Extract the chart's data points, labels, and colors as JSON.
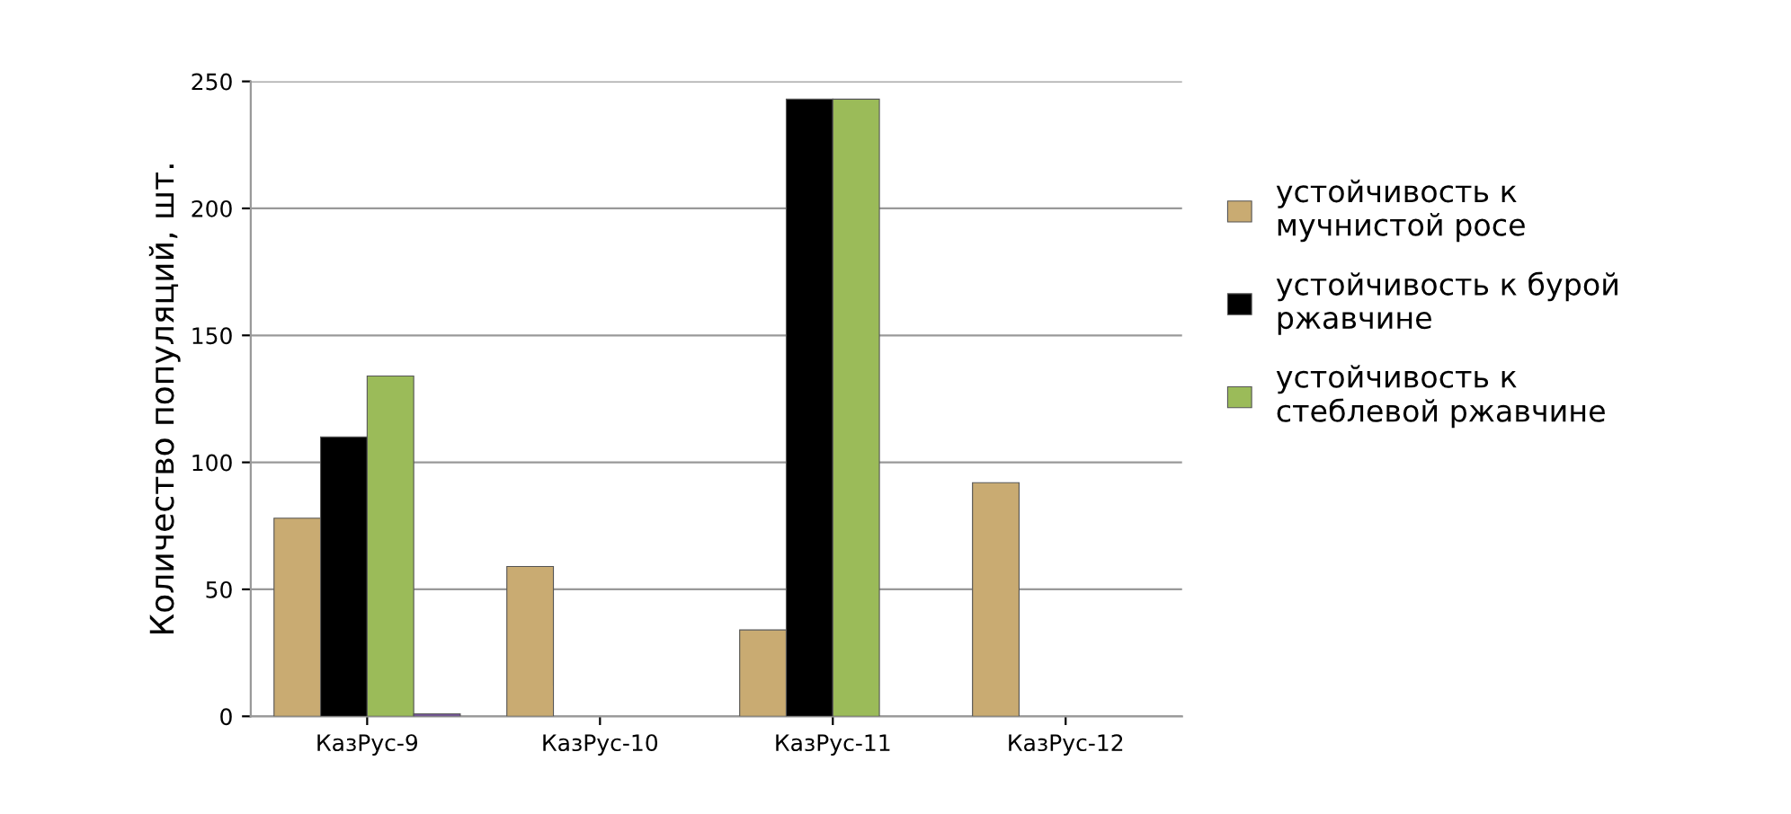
{
  "chart_data": {
    "type": "bar",
    "ylabel": "Количество популяций, шт.",
    "categories": [
      "КазРус-9",
      "КазРус-10",
      "КазРус-11",
      "КазРус-12"
    ],
    "series": [
      {
        "name": "устойчивость к мучнистой росе",
        "color": "#c9ab72",
        "values": [
          78,
          59,
          34,
          92
        ]
      },
      {
        "name": "устойчивость к бурой ржавчине",
        "color": "#000000",
        "values": [
          110,
          null,
          243,
          null
        ]
      },
      {
        "name": "устойчивость к стеблевой ржавчине",
        "color": "#9bbb59",
        "values": [
          134,
          null,
          243,
          null
        ]
      },
      {
        "color": "#7a5a9e",
        "values": [
          1,
          null,
          null,
          null
        ]
      }
    ],
    "ylim": [
      0,
      250
    ],
    "yticks": [
      0,
      50,
      100,
      150,
      200,
      250
    ],
    "grid": "y",
    "legend": "right"
  }
}
